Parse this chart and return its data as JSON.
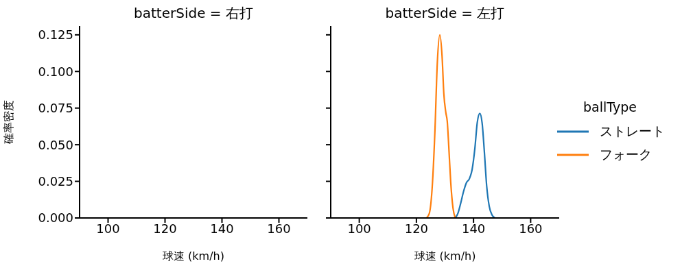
{
  "chart_data": [
    {
      "type": "line",
      "title": "batterSide = 右打",
      "xlabel": "球速 (km/h)",
      "ylabel": "確率密度",
      "xlim": [
        90,
        170
      ],
      "xticks": [
        100,
        120,
        140,
        160
      ],
      "ylim": [
        0,
        0.131
      ],
      "yticks": [
        {
          "value": 0,
          "label": "0.000"
        },
        0.025,
        {
          "value": 0.05,
          "label": "0.050"
        },
        0.075,
        {
          "value": 0.1,
          "label": "0.100"
        },
        0.125
      ]
    },
    {
      "type": "line",
      "title": "batterSide = 左打",
      "xlabel": "球速 (km/h)",
      "xlim": [
        90,
        170
      ],
      "xticks": [
        100,
        120,
        140,
        160
      ],
      "ylim": [
        0,
        0.131
      ],
      "yticks": [
        0,
        0.025,
        0.05,
        0.075,
        0.1,
        0.125
      ],
      "tick_labels": "x",
      "legend": "right",
      "legend_title": "ballType",
      "series": [
        {
          "name": "ストレート",
          "color": "#1f77b4",
          "x": [
            133.6,
            134.5,
            135.5,
            136.5,
            137.5,
            138.6,
            139.5,
            140.5,
            141.3,
            142.2,
            143,
            143.8,
            144.6,
            145.5,
            146.5,
            147.5
          ],
          "values": [
            0,
            0.003,
            0.01,
            0.018,
            0.024,
            0.027,
            0.033,
            0.048,
            0.065,
            0.0714,
            0.065,
            0.045,
            0.022,
            0.008,
            0.002,
            0
          ]
        },
        {
          "name": "フォーク",
          "color": "#ff7f0e",
          "x": [
            123.5,
            124.5,
            125.5,
            126.5,
            127.3,
            128.2,
            129,
            129.6,
            130.3,
            130.8,
            131.3,
            132,
            132.8,
            133.6
          ],
          "values": [
            0,
            0.003,
            0.02,
            0.06,
            0.105,
            0.125,
            0.11,
            0.085,
            0.072,
            0.066,
            0.05,
            0.025,
            0.007,
            0
          ]
        }
      ]
    }
  ]
}
